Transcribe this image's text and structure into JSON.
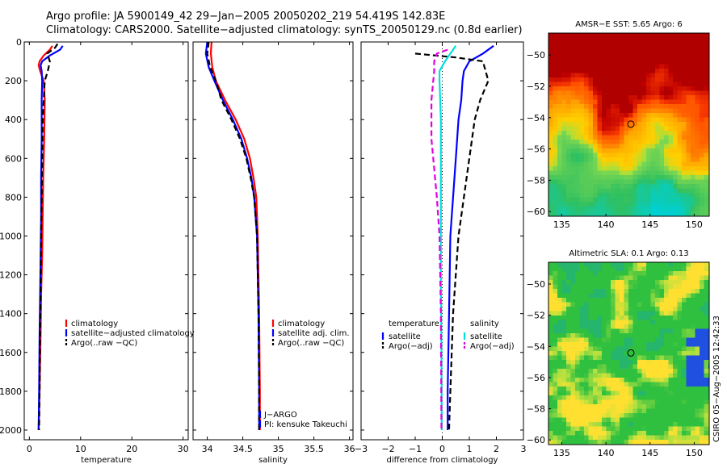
{
  "header": {
    "title_line1": "Argo profile: JA 5900149_42 29−Jan−2005 20050202_219 54.419S 142.83E",
    "title_line2": "Climatology: CARS2000. Satellite−adjusted climatology: synTS_20050129.nc (0.8d earlier)"
  },
  "side_note": "CSIRO 05−Aug−2005 12:42:33",
  "chart_data": [
    {
      "id": "temperature",
      "type": "line",
      "xlabel": "temperature",
      "xlim": [
        -1,
        31
      ],
      "ylim": [
        2050,
        0
      ],
      "xticks": [
        0,
        10,
        20,
        30
      ],
      "yticks": [
        0,
        200,
        400,
        600,
        800,
        1000,
        1200,
        1400,
        1600,
        1800,
        2000
      ],
      "show_yticklabels": true,
      "legend": [
        "climatology",
        "satellite−adjusted climatology",
        "Argo(..raw −QC)"
      ],
      "legend_position": "lower-right",
      "series": [
        {
          "name": "climatology",
          "color": "#ff0000",
          "dash": "solid",
          "x": [
            4.5,
            4.0,
            2.8,
            2.0,
            1.8,
            2.1,
            2.8,
            3.0,
            2.9,
            2.7,
            2.6,
            2.5,
            2.3,
            2.2,
            2.0,
            1.8
          ],
          "y": [
            20,
            40,
            70,
            100,
            120,
            150,
            200,
            300,
            500,
            700,
            900,
            1100,
            1300,
            1500,
            1800,
            2000
          ]
        },
        {
          "name": "satellite−adjusted climatology",
          "color": "#0000ff",
          "dash": "solid",
          "x": [
            6.5,
            6.0,
            4.0,
            2.5,
            2.2,
            2.4,
            2.5,
            2.4,
            2.4,
            2.3,
            2.3,
            2.2,
            2.1,
            2.0,
            1.9,
            1.8
          ],
          "y": [
            20,
            40,
            70,
            100,
            120,
            150,
            200,
            300,
            500,
            700,
            900,
            1100,
            1300,
            1500,
            1800,
            2000
          ]
        },
        {
          "name": "Argo(..raw −QC)",
          "color": "#000000",
          "dash": "dash",
          "x": [
            5.5,
            5.0,
            3.5,
            4.0,
            3.6,
            3.0,
            2.8,
            2.6,
            2.5,
            2.4,
            2.3,
            2.2,
            2.1,
            2.0,
            1.9
          ],
          "y": [
            10,
            30,
            60,
            100,
            150,
            200,
            300,
            400,
            600,
            800,
            1000,
            1300,
            1500,
            1800,
            2000
          ]
        }
      ]
    },
    {
      "id": "salinity",
      "type": "line",
      "xlabel": "salinity",
      "xlim": [
        33.8,
        36.05
      ],
      "ylim": [
        2050,
        0
      ],
      "xticks": [
        34,
        34.5,
        35,
        35.5,
        36
      ],
      "yticks": [
        0,
        200,
        400,
        600,
        800,
        1000,
        1200,
        1400,
        1600,
        1800,
        2000
      ],
      "show_yticklabels": false,
      "legend": [
        "climatology",
        "satellite adj. clim.",
        "Argo(..raw −QC)"
      ],
      "legend_position": "lower-right",
      "annotation": [
        "J−ARGO",
        "PI: kensuke Takeuchi"
      ],
      "series": [
        {
          "name": "climatology",
          "color": "#ff0000",
          "dash": "solid",
          "x": [
            34.06,
            34.05,
            34.07,
            34.12,
            34.25,
            34.4,
            34.52,
            34.6,
            34.65,
            34.69,
            34.71,
            34.73,
            34.74,
            34.74
          ],
          "y": [
            0,
            60,
            130,
            200,
            300,
            400,
            500,
            600,
            700,
            800,
            1000,
            1400,
            1800,
            2000
          ]
        },
        {
          "name": "satellite adj. clim.",
          "color": "#0000ff",
          "dash": "solid",
          "x": [
            34.0,
            33.98,
            34.02,
            34.1,
            34.22,
            34.36,
            34.48,
            34.56,
            34.62,
            34.66,
            34.7,
            34.72,
            34.73,
            34.73
          ],
          "y": [
            0,
            60,
            130,
            200,
            300,
            400,
            500,
            600,
            700,
            800,
            1000,
            1400,
            1800,
            2000
          ]
        },
        {
          "name": "Argo(..raw −QC)",
          "color": "#000000",
          "dash": "dash",
          "x": [
            34.02,
            34.0,
            34.04,
            34.12,
            34.2,
            34.34,
            34.46,
            34.55,
            34.61,
            34.66,
            34.7,
            34.72,
            34.73,
            34.73
          ],
          "y": [
            0,
            60,
            130,
            200,
            300,
            400,
            500,
            600,
            700,
            800,
            1000,
            1400,
            1800,
            2000
          ]
        }
      ]
    },
    {
      "id": "difference",
      "type": "line",
      "xlabel": "difference from climatology",
      "xlim": [
        -3,
        3
      ],
      "ylim": [
        2050,
        0
      ],
      "xticks": [
        -3,
        -2,
        -1,
        0,
        1,
        2,
        3
      ],
      "yticks": [
        0,
        200,
        400,
        600,
        800,
        1000,
        1200,
        1400,
        1600,
        1800,
        2000
      ],
      "show_yticklabels": false,
      "legend_left_header": "temperature",
      "legend_left": [
        "satellite",
        "Argo(−adj)"
      ],
      "legend_right_header": "salinity",
      "legend_right": [
        "satellite",
        "Argo(−adj)"
      ],
      "series": [
        {
          "name": "satellite",
          "group": "temperature",
          "color": "#0000ff",
          "dash": "solid",
          "x": [
            1.9,
            1.5,
            1.0,
            0.8,
            0.75,
            0.7,
            0.6,
            0.5,
            0.4,
            0.3,
            0.25,
            0.2,
            0.2
          ],
          "y": [
            20,
            60,
            100,
            150,
            200,
            300,
            400,
            600,
            800,
            1000,
            1400,
            1800,
            2000
          ]
        },
        {
          "name": "Argo(−adj)",
          "group": "temperature",
          "color": "#000000",
          "dash": "dash",
          "x": [
            -1.0,
            0.5,
            1.5,
            1.7,
            1.4,
            1.2,
            1.0,
            0.8,
            0.6,
            0.4,
            0.3,
            0.25
          ],
          "y": [
            60,
            80,
            100,
            200,
            300,
            400,
            600,
            800,
            1000,
            1400,
            1800,
            2000
          ]
        },
        {
          "name": "satellite",
          "group": "salinity",
          "color": "#00e0e0",
          "dash": "solid",
          "x": [
            0.5,
            0.3,
            0.1,
            -0.1,
            -0.1,
            -0.05,
            -0.05,
            -0.05,
            -0.03,
            -0.02
          ],
          "y": [
            20,
            60,
            100,
            150,
            200,
            400,
            800,
            1200,
            1600,
            2000
          ]
        },
        {
          "name": "Argo(−adj)",
          "group": "salinity",
          "color": "#e000e0",
          "dash": "dash",
          "x": [
            0.2,
            -0.2,
            -0.3,
            -0.3,
            -0.4,
            -0.4,
            -0.2,
            -0.1,
            -0.05,
            -0.03
          ],
          "y": [
            40,
            60,
            100,
            150,
            300,
            500,
            800,
            1000,
            1400,
            2000
          ]
        }
      ]
    },
    {
      "id": "sst-map",
      "type": "heatmap",
      "title": "AMSR−E SST: 5.65 Argo: 6",
      "xlim": [
        133.5,
        151.7
      ],
      "ylim": [
        -60.3,
        -48.6
      ],
      "xticks": [
        135,
        140,
        145,
        150
      ],
      "yticks": [
        -50,
        -52,
        -54,
        -56,
        -58,
        -60
      ],
      "marker": {
        "lon": 142.83,
        "lat": -54.42
      },
      "colors": {
        "warm": "#b00000",
        "mid": "#ffd000",
        "cool": "#30c060",
        "cold": "#00d0d0"
      }
    },
    {
      "id": "sla-map",
      "type": "heatmap",
      "title": "Altimetric SLA: 0.1 Argo: 0.13",
      "xlim": [
        133.5,
        151.7
      ],
      "ylim": [
        -60.3,
        -48.6
      ],
      "xticks": [
        135,
        140,
        145,
        150
      ],
      "yticks": [
        -50,
        -52,
        -54,
        -56,
        -58,
        -60
      ],
      "marker": {
        "lon": 142.83,
        "lat": -54.42
      },
      "colors": {
        "base": "#30c040",
        "light": "#b0e040",
        "bright": "#ffe030",
        "blue": "#2050e0"
      }
    }
  ]
}
